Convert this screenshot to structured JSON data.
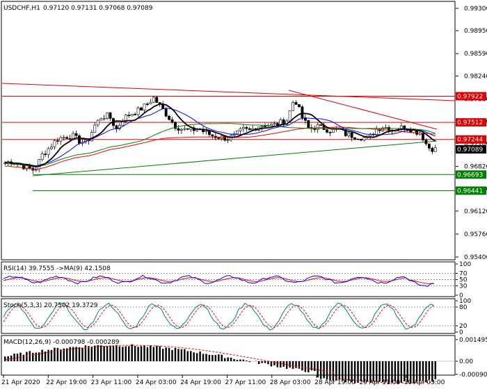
{
  "header": {
    "symbol": "USDCHF,H1",
    "ohlc": "0.97120 0.97131 0.97068 0.97089"
  },
  "colors": {
    "bull": "#000000",
    "bear": "#000000",
    "red_level": "#e00000",
    "green_level": "#008000",
    "price_tag": "#000000",
    "ma_fast": "#000000",
    "ma_blue": "#0000ff",
    "ma_green": "#008000",
    "ma_red": "#ff0000",
    "rsi_line": "#0000ff",
    "rsi_ma": "#ff0000",
    "stoch_main": "#008080",
    "stoch_signal": "#ff0000",
    "macd_hist": "#000000",
    "macd_signal": "#ff0000"
  },
  "main_axis": {
    "ticks": [
      "0.99300",
      "0.98950",
      "0.98590",
      "0.98240",
      "0.97880",
      "0.97530",
      "0.97180",
      "0.96820",
      "0.96470",
      "0.96120",
      "0.95760",
      "0.95400"
    ],
    "min": 0.954,
    "max": 0.993
  },
  "levels": [
    {
      "label": "0.97922",
      "value": 0.97922,
      "color": "red"
    },
    {
      "label": "0.97512",
      "value": 0.97512,
      "color": "red"
    },
    {
      "label": "0.97244",
      "value": 0.97244,
      "color": "red"
    },
    {
      "label": "0.96693",
      "value": 0.96693,
      "color": "green"
    },
    {
      "label": "0.96441",
      "value": 0.96441,
      "color": "green"
    }
  ],
  "current_price": {
    "label": "0.97089",
    "value": 0.97089
  },
  "rsi": {
    "label": "RSI(14) 39.7555  ->MA(9) 42.1508",
    "ticks": [
      "100",
      "70",
      "50",
      "30",
      "0"
    ]
  },
  "stoch": {
    "label": "Stoch(5,3,3) 20.7502 19.3729",
    "ticks": [
      "100",
      "80",
      "20",
      "0"
    ]
  },
  "macd": {
    "label": "MACD(12,26,9) -0.000798 -0.000289",
    "ticks": [
      "0.001495",
      "0.00",
      "-0.000907"
    ]
  },
  "time_axis": [
    "21 Apr 2020",
    "22 Apr 19:00",
    "23 Apr 11:00",
    "24 Apr 03:00",
    "24 Apr 19:00",
    "27 Apr 11:00",
    "28 Apr 03:00",
    "28 Apr 19:00",
    "29 Apr 11:00",
    "30 Apr 03:00"
  ],
  "chart_data": {
    "type": "candlestick",
    "series_close_path": [
      0.9688,
      0.969,
      0.9685,
      0.968,
      0.9676,
      0.97,
      0.9712,
      0.9725,
      0.9728,
      0.9731,
      0.9722,
      0.9718,
      0.9745,
      0.976,
      0.9762,
      0.974,
      0.9758,
      0.9765,
      0.977,
      0.9778,
      0.979,
      0.9775,
      0.976,
      0.9745,
      0.974,
      0.9738,
      0.9742,
      0.9735,
      0.973,
      0.9728,
      0.9726,
      0.973,
      0.974,
      0.9738,
      0.9745,
      0.9748,
      0.9746,
      0.975,
      0.9755,
      0.979,
      0.976,
      0.974,
      0.9745,
      0.9742,
      0.9738,
      0.974,
      0.9732,
      0.973,
      0.9728,
      0.9726,
      0.974,
      0.9745,
      0.974,
      0.9742,
      0.9744,
      0.9738,
      0.9735,
      0.9712,
      0.9709
    ]
  }
}
